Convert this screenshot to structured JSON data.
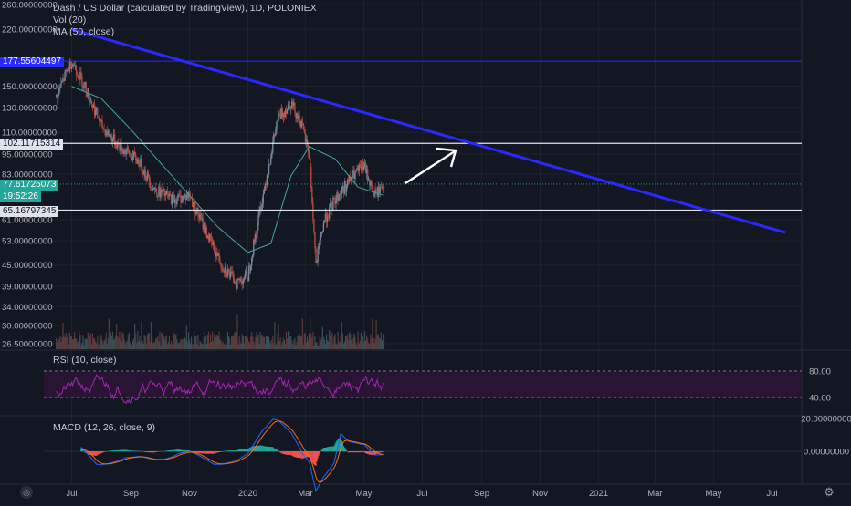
{
  "header": {
    "title": "Dash / US Dollar (calculated by TradingView), 1D, POLONIEX",
    "volume_label": "Vol (20)",
    "ma_label": "MA (50, close)"
  },
  "price_axis": {
    "ticks": [
      "260.00000000",
      "220.00000000",
      "150.00000000",
      "130.00000000",
      "110.00000000",
      "95.00000000",
      "83.00000000",
      "61.00000000",
      "53.00000000",
      "45.00000000",
      "39.00000000",
      "34.00000000",
      "30.00000000",
      "26.50000000"
    ]
  },
  "price_tags": {
    "resistance_top": "177.55604497",
    "resistance_mid": "102.11715314",
    "last_price": "77.61725073",
    "countdown": "19:52:26",
    "support": "65.16797345"
  },
  "rsi": {
    "label": "RSI (10, close)",
    "upper": "80.00",
    "lower": "40.00"
  },
  "macd": {
    "label": "MACD (12, 26, close, 9)",
    "upper": "20.00000000",
    "zero": "0.00000000"
  },
  "time_axis": {
    "labels": [
      "Jul",
      "Sep",
      "Nov",
      "2020",
      "Mar",
      "May",
      "Jul",
      "Sep",
      "Nov",
      "2021",
      "Mar",
      "May",
      "Jul"
    ]
  },
  "colors": {
    "background": "#131722",
    "trendline": "#2929ff",
    "level_line": "#e0e3eb",
    "ma_line": "#3fa6a0",
    "up_candle": "#758696",
    "down_candle": "#b34a3f",
    "rsi_line": "#9c27b0",
    "macd_line": "#2962ff",
    "signal_line": "#ff6d00",
    "last_price_tag": "#26a69a"
  },
  "icons": {
    "logo": "tradingview-logo-icon",
    "settings": "gear-icon",
    "arrow": "annotation-arrow-icon"
  },
  "chart_data": {
    "type": "candlestick",
    "title": "Dash / US Dollar (calculated by TradingView), 1D, POLONIEX",
    "price_scale": "log",
    "ylim": [
      26.5,
      260
    ],
    "x_range": [
      "2019-06",
      "2021-07"
    ],
    "close_path": [
      [
        "2019-06-15",
        140
      ],
      [
        "2019-07-01",
        178
      ],
      [
        "2019-07-15",
        150
      ],
      [
        "2019-08-01",
        115
      ],
      [
        "2019-08-20",
        100
      ],
      [
        "2019-09-10",
        90
      ],
      [
        "2019-09-25",
        75
      ],
      [
        "2019-10-15",
        70
      ],
      [
        "2019-11-01",
        72
      ],
      [
        "2019-11-20",
        55
      ],
      [
        "2019-12-05",
        45
      ],
      [
        "2019-12-20",
        40
      ],
      [
        "2020-01-01",
        42
      ],
      [
        "2020-01-15",
        68
      ],
      [
        "2020-02-01",
        120
      ],
      [
        "2020-02-15",
        135
      ],
      [
        "2020-02-25",
        118
      ],
      [
        "2020-03-05",
        95
      ],
      [
        "2020-03-12",
        45
      ],
      [
        "2020-03-20",
        60
      ],
      [
        "2020-04-01",
        70
      ],
      [
        "2020-04-20",
        82
      ],
      [
        "2020-05-01",
        88
      ],
      [
        "2020-05-12",
        72
      ],
      [
        "2020-05-22",
        77.62
      ]
    ],
    "ma_50_path": [
      [
        "2019-07-01",
        150
      ],
      [
        "2019-08-01",
        138
      ],
      [
        "2019-09-01",
        112
      ],
      [
        "2019-10-01",
        90
      ],
      [
        "2019-11-01",
        72
      ],
      [
        "2019-12-01",
        58
      ],
      [
        "2020-01-01",
        49
      ],
      [
        "2020-01-25",
        52
      ],
      [
        "2020-02-15",
        82
      ],
      [
        "2020-03-05",
        100
      ],
      [
        "2020-04-01",
        92
      ],
      [
        "2020-04-25",
        76
      ],
      [
        "2020-05-22",
        72
      ]
    ],
    "horizontal_levels": [
      177.55604497,
      102.11715314,
      65.16797345
    ],
    "trendline": [
      [
        "2019-07-01",
        220
      ],
      [
        "2021-07-15",
        56
      ]
    ],
    "rsi": {
      "levels": [
        80,
        40
      ]
    },
    "macd": {
      "levels": [
        20,
        0
      ]
    }
  }
}
